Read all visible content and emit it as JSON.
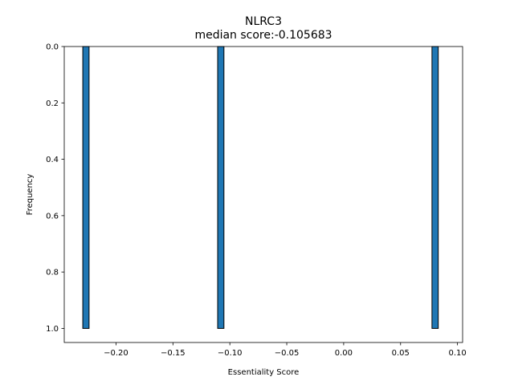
{
  "chart_data": {
    "type": "bar",
    "title": "NLRC3",
    "subtitle": "median score:-0.105683",
    "xlabel": "Essentiality Score",
    "ylabel": "Frequency",
    "xlim": [
      -0.2455,
      0.1045
    ],
    "ylim": [
      1.05,
      0.0
    ],
    "y_inverted": true,
    "grid": false,
    "xticks": [
      {
        "value": -0.2,
        "label": "−0.20"
      },
      {
        "value": -0.15,
        "label": "−0.15"
      },
      {
        "value": -0.1,
        "label": "−0.10"
      },
      {
        "value": -0.05,
        "label": "−0.05"
      },
      {
        "value": 0.0,
        "label": "0.00"
      },
      {
        "value": 0.05,
        "label": "0.05"
      },
      {
        "value": 0.1,
        "label": "0.10"
      }
    ],
    "yticks": [
      {
        "value": 0.0,
        "label": "0.0"
      },
      {
        "value": 0.2,
        "label": "0.2"
      },
      {
        "value": 0.4,
        "label": "0.4"
      },
      {
        "value": 0.6,
        "label": "0.6"
      },
      {
        "value": 0.8,
        "label": "0.8"
      },
      {
        "value": 1.0,
        "label": "1.0"
      }
    ],
    "bars": [
      {
        "x0": -0.2292,
        "x1": -0.2237,
        "count": 1
      },
      {
        "x0": -0.1107,
        "x1": -0.1052,
        "count": 1
      },
      {
        "x0": 0.0776,
        "x1": 0.0831,
        "count": 1
      }
    ],
    "bar_color": "#1f77b4",
    "edge_color": "#000000"
  }
}
